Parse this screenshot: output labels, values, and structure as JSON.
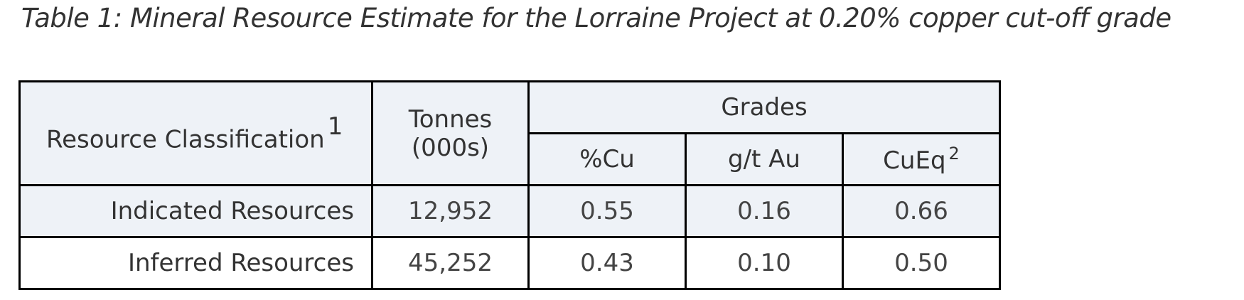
{
  "caption": "Table 1: Mineral Resource Estimate for the Lorraine Project at 0.20% copper cut-off grade",
  "table": {
    "header": {
      "classification": "Resource Classification",
      "classification_note": "1",
      "tonnes_line1": "Tonnes",
      "tonnes_line2": "(000s)",
      "grades": "Grades",
      "cu": "%Cu",
      "au": "g/t Au",
      "cueq": "CuEq",
      "cueq_note": "2"
    },
    "rows": [
      {
        "classification": "Indicated Resources",
        "tonnes": "12,952",
        "cu": "0.55",
        "au": "0.16",
        "cueq": "0.66"
      },
      {
        "classification": "Inferred Resources",
        "tonnes": "45,252",
        "cu": "0.43",
        "au": "0.10",
        "cueq": "0.50"
      }
    ]
  }
}
